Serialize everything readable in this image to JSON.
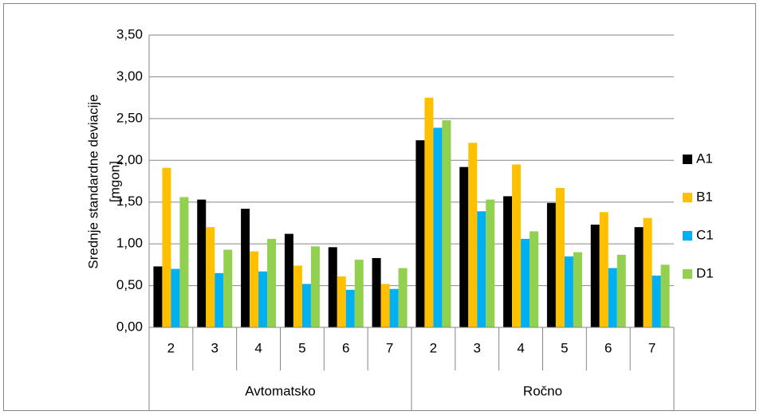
{
  "chart_data": {
    "type": "bar",
    "ylabel": [
      "Srednje standardne deviacije",
      "[mgon]"
    ],
    "category_groups": [
      {
        "name": "Avtomatsko",
        "categories": [
          "2",
          "3",
          "4",
          "5",
          "6",
          "7"
        ]
      },
      {
        "name": "Ročno",
        "categories": [
          "2",
          "3",
          "4",
          "5",
          "6",
          "7"
        ]
      }
    ],
    "series": [
      {
        "name": "A1",
        "color": "#000000",
        "values": [
          0.73,
          1.53,
          1.42,
          1.12,
          0.96,
          0.83,
          2.24,
          1.92,
          1.57,
          1.49,
          1.23,
          1.2
        ]
      },
      {
        "name": "B1",
        "color": "#ffc000",
        "values": [
          1.91,
          1.2,
          0.91,
          0.74,
          0.61,
          0.52,
          2.75,
          2.21,
          1.95,
          1.67,
          1.38,
          1.31
        ]
      },
      {
        "name": "C1",
        "color": "#00b0f0",
        "values": [
          0.7,
          0.65,
          0.67,
          0.52,
          0.45,
          0.46,
          2.39,
          1.39,
          1.06,
          0.85,
          0.71,
          0.62
        ]
      },
      {
        "name": "D1",
        "color": "#92d050",
        "values": [
          1.56,
          0.93,
          1.06,
          0.97,
          0.81,
          0.71,
          2.48,
          1.53,
          1.15,
          0.9,
          0.87,
          0.75
        ]
      }
    ],
    "ylim": [
      0,
      3.5
    ],
    "yticks": [
      {
        "value": 0,
        "label": "0,00"
      },
      {
        "value": 0.5,
        "label": "0,50"
      },
      {
        "value": 1,
        "label": "1,00"
      },
      {
        "value": 1.5,
        "label": "1,50"
      },
      {
        "value": 2,
        "label": "2,00"
      },
      {
        "value": 2.5,
        "label": "2,50"
      },
      {
        "value": 3,
        "label": "3,00"
      },
      {
        "value": 3.5,
        "label": "3,50"
      }
    ],
    "grid": true,
    "legend": "right"
  }
}
